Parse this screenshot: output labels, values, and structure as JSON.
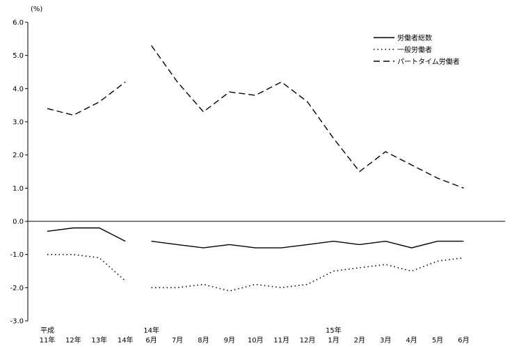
{
  "chart_data": {
    "type": "line",
    "unit_label": "(%)",
    "ylim": [
      -3.0,
      6.0
    ],
    "y_ticks": [
      "6.0",
      "5.0",
      "4.0",
      "3.0",
      "2.0",
      "1.0",
      "0.0",
      "-1.0",
      "-2.0",
      "-3.0"
    ],
    "grid": false,
    "legend_position": "top-right",
    "categories": [
      "平成11年",
      "12年",
      "13年",
      "14年",
      "14年6月",
      "7月",
      "8月",
      "9月",
      "10月",
      "11月",
      "12月",
      "15年1月",
      "2月",
      "3月",
      "4月",
      "5月",
      "6月"
    ],
    "x_labels": [
      {
        "top": "平成",
        "bottom": "11年"
      },
      {
        "top": "",
        "bottom": "12年"
      },
      {
        "top": "",
        "bottom": "13年"
      },
      {
        "top": "",
        "bottom": "14年"
      },
      {
        "top": "14年",
        "bottom": "6月"
      },
      {
        "top": "",
        "bottom": "7月"
      },
      {
        "top": "",
        "bottom": "8月"
      },
      {
        "top": "",
        "bottom": "9月"
      },
      {
        "top": "",
        "bottom": "10月"
      },
      {
        "top": "",
        "bottom": "11月"
      },
      {
        "top": "",
        "bottom": "12月"
      },
      {
        "top": "15年",
        "bottom": "1月"
      },
      {
        "top": "",
        "bottom": "2月"
      },
      {
        "top": "",
        "bottom": "3月"
      },
      {
        "top": "",
        "bottom": "4月"
      },
      {
        "top": "",
        "bottom": "5月"
      },
      {
        "top": "",
        "bottom": "6月"
      }
    ],
    "segments": [
      [
        0,
        3
      ],
      [
        4,
        16
      ]
    ],
    "series": [
      {
        "name": "労働者総数",
        "style": "solid",
        "values": [
          -0.3,
          -0.2,
          -0.2,
          -0.6,
          -0.6,
          -0.7,
          -0.8,
          -0.7,
          -0.8,
          -0.8,
          -0.7,
          -0.6,
          -0.7,
          -0.6,
          -0.8,
          -0.6,
          -0.6
        ]
      },
      {
        "name": "一般労働者",
        "style": "dotted",
        "values": [
          -1.0,
          -1.0,
          -1.1,
          -1.8,
          -2.0,
          -2.0,
          -1.9,
          -2.1,
          -1.9,
          -2.0,
          -1.9,
          -1.5,
          -1.4,
          -1.3,
          -1.5,
          -1.2,
          -1.1
        ]
      },
      {
        "name": "パートタイム労働者",
        "style": "dashed",
        "values": [
          3.4,
          3.2,
          3.6,
          4.2,
          5.3,
          4.2,
          3.3,
          3.9,
          3.8,
          4.2,
          3.6,
          2.5,
          1.5,
          2.1,
          1.7,
          1.3,
          1.0
        ]
      }
    ]
  }
}
